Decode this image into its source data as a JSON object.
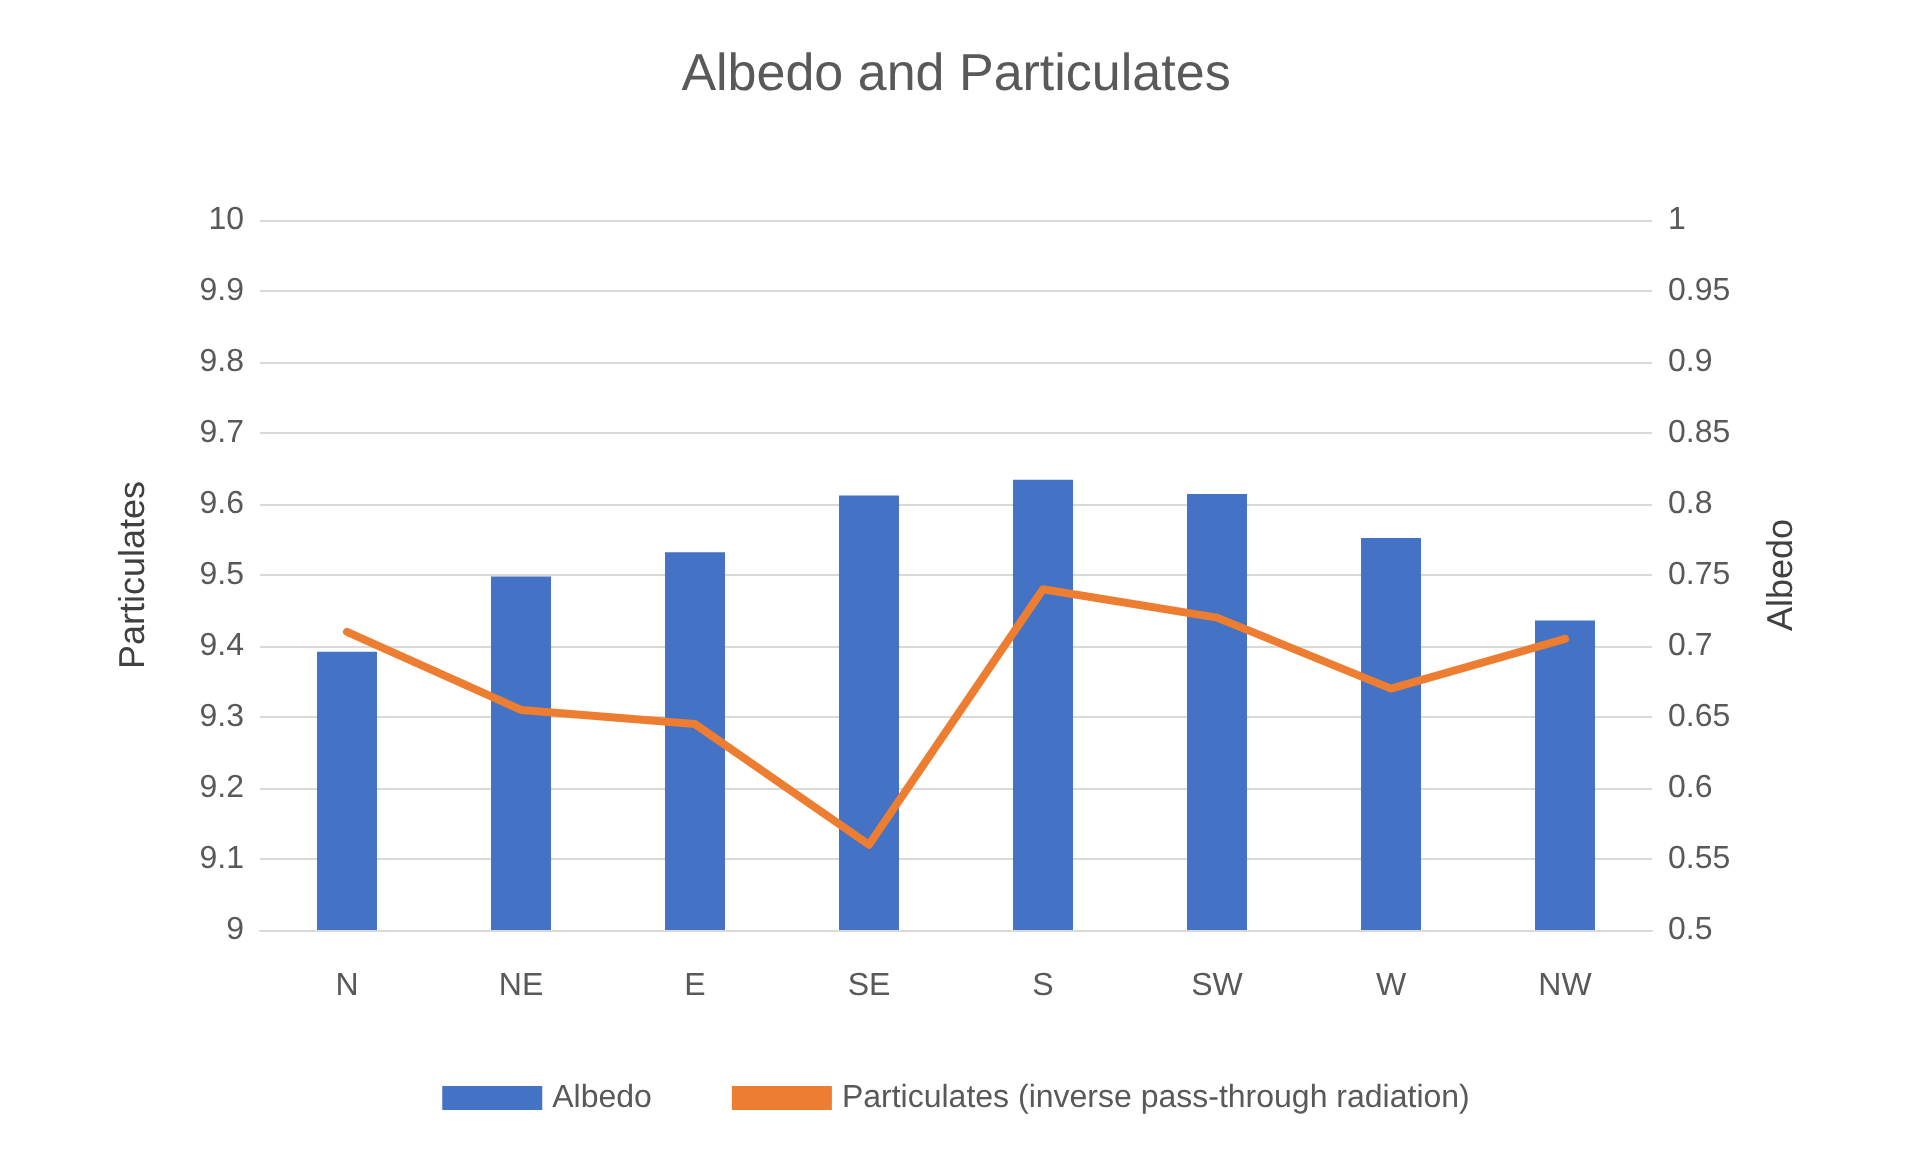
{
  "chart_data": {
    "type": "bar",
    "title": "Albedo and Particulates",
    "ylabel": "Particulates",
    "y2label": "Albedo",
    "categories": [
      "N",
      "NE",
      "E",
      "SE",
      "S",
      "SW",
      "W",
      "NW"
    ],
    "series": [
      {
        "name": "Albedo",
        "axis": "y2",
        "color": "#4472c4",
        "values": [
          0.696,
          0.749,
          0.766,
          0.806,
          0.817,
          0.807,
          0.776,
          0.718
        ]
      },
      {
        "name": "Particulates (inverse pass-through radiation)",
        "type": "line",
        "axis": "y",
        "color": "#ed7d31",
        "marker": "none",
        "values": [
          9.42,
          9.31,
          9.29,
          9.12,
          9.48,
          9.44,
          9.34,
          9.41
        ]
      }
    ],
    "ylim": [
      9,
      10
    ],
    "yticks": [
      9,
      9.1,
      9.2,
      9.3,
      9.4,
      9.5,
      9.6,
      9.7,
      9.8,
      9.9,
      10
    ],
    "y2lim": [
      0.5,
      1
    ],
    "y2ticks": [
      0.5,
      0.55,
      0.6,
      0.65,
      0.7,
      0.75,
      0.8,
      0.85,
      0.9,
      0.95,
      1
    ],
    "grid": "y",
    "legend": "bottom"
  }
}
